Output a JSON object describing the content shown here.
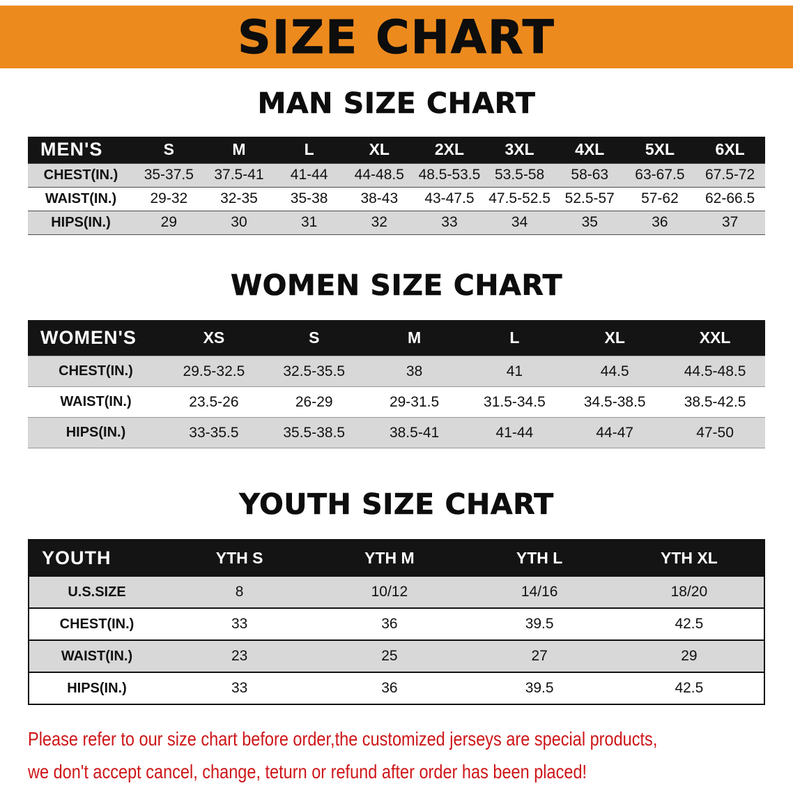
{
  "banner": {
    "title": "SIZE CHART"
  },
  "sections": {
    "men": {
      "title": "MAN SIZE CHART",
      "table": {
        "header": [
          "MEN'S",
          "S",
          "M",
          "L",
          "XL",
          "2XL",
          "3XL",
          "4XL",
          "5XL",
          "6XL"
        ],
        "rows": [
          [
            "CHEST(IN.)",
            "35-37.5",
            "37.5-41",
            "41-44",
            "44-48.5",
            "48.5-53.5",
            "53.5-58",
            "58-63",
            "63-67.5",
            "67.5-72"
          ],
          [
            "WAIST(IN.)",
            "29-32",
            "32-35",
            "35-38",
            "38-43",
            "43-47.5",
            "47.5-52.5",
            "52.5-57",
            "57-62",
            "62-66.5"
          ],
          [
            "HIPS(IN.)",
            "29",
            "30",
            "31",
            "32",
            "33",
            "34",
            "35",
            "36",
            "37"
          ]
        ]
      }
    },
    "women": {
      "title": "WOMEN SIZE CHART",
      "table": {
        "header": [
          "WOMEN'S",
          "XS",
          "S",
          "M",
          "L",
          "XL",
          "XXL"
        ],
        "rows": [
          [
            "CHEST(IN.)",
            "29.5-32.5",
            "32.5-35.5",
            "38",
            "41",
            "44.5",
            "44.5-48.5"
          ],
          [
            "WAIST(IN.)",
            "23.5-26",
            "26-29",
            "29-31.5",
            "31.5-34.5",
            "34.5-38.5",
            "38.5-42.5"
          ],
          [
            "HIPS(IN.)",
            "33-35.5",
            "35.5-38.5",
            "38.5-41",
            "41-44",
            "44-47",
            "47-50"
          ]
        ]
      }
    },
    "youth": {
      "title": "YOUTH SIZE CHART",
      "table": {
        "header": [
          "YOUTH",
          "YTH S",
          "YTH M",
          "YTH L",
          "YTH XL"
        ],
        "rows": [
          [
            "U.S.SIZE",
            "8",
            "10/12",
            "14/16",
            "18/20"
          ],
          [
            "CHEST(IN.)",
            "33",
            "36",
            "39.5",
            "42.5"
          ],
          [
            "WAIST(IN.)",
            "23",
            "25",
            "27",
            "29"
          ],
          [
            "HIPS(IN.)",
            "33",
            "36",
            "39.5",
            "42.5"
          ]
        ]
      }
    }
  },
  "footer": {
    "line1": "Please refer to our size chart before order,the customized jerseys are special products,",
    "line2": "we don't accept cancel, change, teturn or refund after order has been placed!"
  },
  "colors": {
    "banner_bg": "#ec8a1e",
    "table_header_bg": "#141414",
    "table_alt_row_bg": "#d8d8d8",
    "notice_text": "#cd1619"
  }
}
